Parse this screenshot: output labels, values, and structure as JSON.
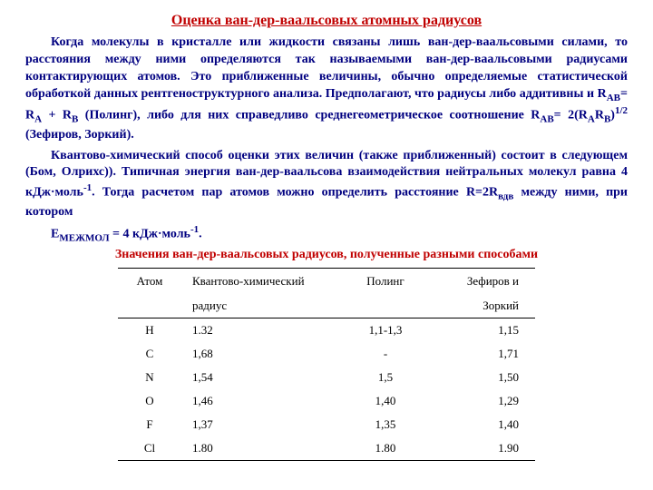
{
  "title": "Оценка ван-дер-ваальсовых атомных радиусов",
  "para1_a": "Когда молекулы в кристалле или жидкости связаны лишь ван-дер-ваальсовыми силами, то расстояния между ними определяются так называемыми ван-дер-ваальсовыми радиусами контактирующих атомов. Это приближенные величины, обычно определяемые статистической обработкой данных рентгеноструктурного анализа. Предполагают, что радиусы либо аддитивны и R",
  "para1_ab": "AB",
  "para1_b": "= R",
  "para1_a_sub": "A",
  "para1_c": " + R",
  "para1_b_sub": "B",
  "para1_d": " (Полинг), либо для них справедливо среднегеометрическое соотношение R",
  "para1_ab2": "AB",
  "para1_e": "= 2(R",
  "para1_a_sub2": "A",
  "para1_f": "R",
  "para1_b_sub2": "B",
  "para1_g": ")",
  "para1_half": "1/2",
  "para1_h": " (Зефиров, Зоркий).",
  "para2_a": "Квантово-химический способ оценки этих величин (также приближенный) состоит в следующем (Бом, Олрихс)). Типичная энергия ван-дер-ваальсова взаимодействия нейтральных молекул равна 4 кДж·моль",
  "para2_minus1": "-1",
  "para2_b": ". Тогда расчетом пар атомов можно определить расстояние R=2R",
  "para2_vdw": "вдв",
  "para2_c": " между ними, при котором",
  "eq_a": "E",
  "eq_sub": "МЕЖМОЛ",
  "eq_b": " = 4 кДж·моль",
  "eq_sup": "-1",
  "eq_c": ".",
  "subtitle": "Значения ван-дер-ваальсовых радиусов, полученные разными способами",
  "table": {
    "headers": {
      "atom": "Атом",
      "q1": "Квантово-химический",
      "q2": "радиус",
      "p": "Полинг",
      "z1": "Зефиров и",
      "z2": "Зоркий"
    },
    "rows": [
      {
        "atom": "H",
        "q": "1.32",
        "p": "1,1-1,3",
        "z": "1,15"
      },
      {
        "atom": "C",
        "q": "1,68",
        "p": "-",
        "z": "1,71"
      },
      {
        "atom": "N",
        "q": "1,54",
        "p": "1,5",
        "z": "1,50"
      },
      {
        "atom": "O",
        "q": "1,46",
        "p": "1,40",
        "z": "1,29"
      },
      {
        "atom": "F",
        "q": "1,37",
        "p": "1,35",
        "z": "1,40"
      },
      {
        "atom": "Cl",
        "q": "1.80",
        "p": "1.80",
        "z": "1.90"
      }
    ]
  },
  "colors": {
    "accent": "#c00000",
    "text": "#000080",
    "table_text": "#000000",
    "background": "#ffffff",
    "rule": "#000000"
  }
}
